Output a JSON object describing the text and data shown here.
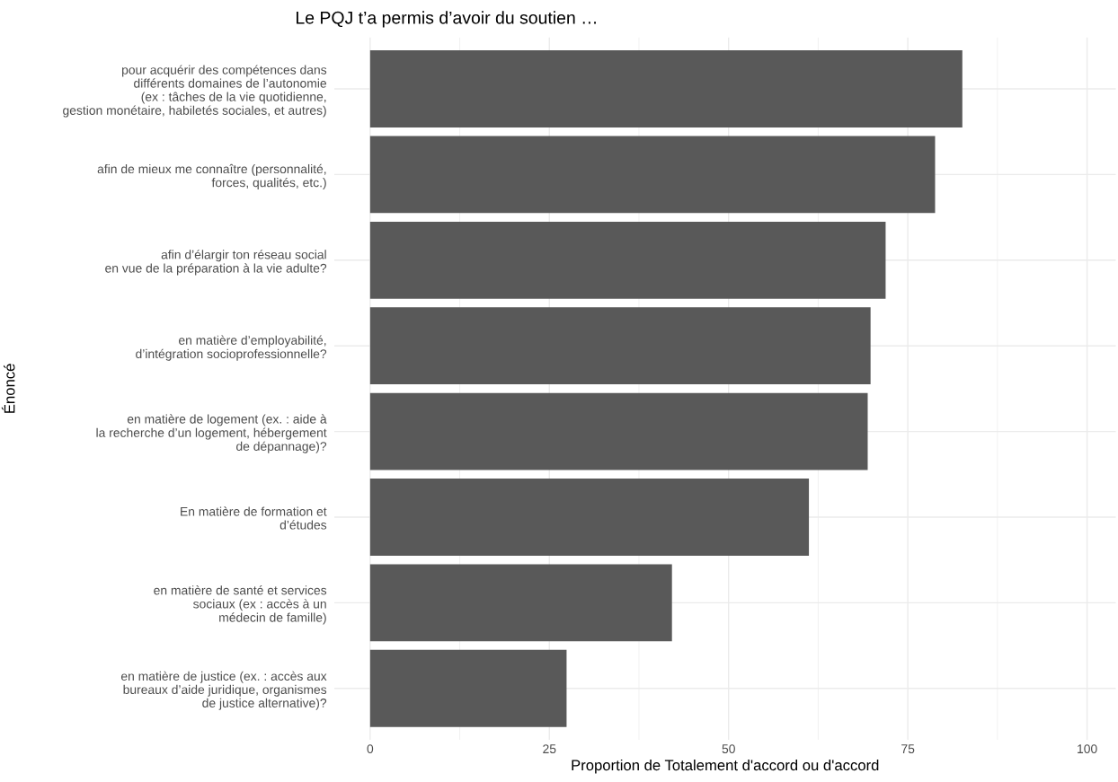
{
  "chart_data": {
    "type": "bar",
    "orientation": "horizontal",
    "title": "Le PQJ t’a permis d’avoir du soutien …",
    "xlabel": "Proportion de Totalement d'accord ou d'accord",
    "ylabel": "Énoncé",
    "categories": [
      "pour acquérir des compétences dans\ndifférents domaines de l’autonomie\n(ex : tâches de la vie quotidienne,\ngestion monétaire, habiletés sociales, et autres)",
      "afin de mieux me connaître (personnalité,\nforces, qualités, etc.)",
      "afin d’élargir ton réseau social\nen vue de la préparation à la vie adulte?",
      "en matière d’employabilité,\nd’intégration socioprofessionnelle?",
      "en matière de logement (ex. : aide à\nla recherche d’un logement, hébergement\nde dépannage)?",
      "En matière de formation et\nd’études",
      "en matière de santé et services\nsociaux (ex : accès à un\nmédecin de famille)",
      "en matière de justice (ex. : accès aux\nbureaux d’aide juridique, organismes\nde justice alternative)?"
    ],
    "values": [
      82.6,
      78.8,
      71.9,
      69.8,
      69.4,
      61.2,
      42.1,
      27.4
    ],
    "color": "#595959",
    "xlim": [
      -5,
      104
    ],
    "xticks": [
      0,
      {
        "value": 12.5,
        "label": null
      },
      25,
      {
        "value": 37.5,
        "label": null
      },
      50,
      {
        "value": 62.5,
        "label": null
      },
      75,
      {
        "value": 87.5,
        "label": null
      },
      100
    ],
    "grid": true
  }
}
